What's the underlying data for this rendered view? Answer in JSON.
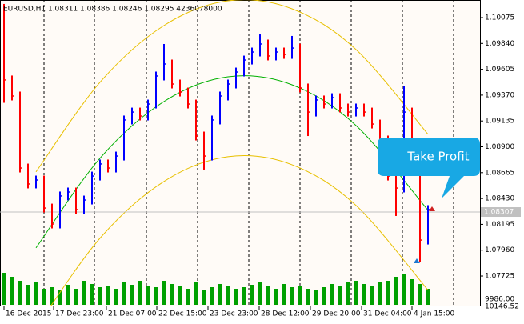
{
  "chart_data": {
    "type": "ohlc",
    "header": "EURUSD,H1  1.08311 1.08386 1.08246 1.08295  4236078000",
    "callout": "Take Profit",
    "up_color": "#0000ff",
    "down_color": "#ff0000",
    "close": [
      1.09508,
      1.09362,
      1.08707,
      1.08562,
      1.08598,
      1.08343,
      1.08198,
      1.08453,
      1.08489,
      1.08329,
      1.08416,
      1.08634,
      1.08744,
      1.08707,
      1.08816,
      1.09144,
      1.09216,
      1.0918,
      1.09289,
      1.09544,
      1.09653,
      1.09471,
      1.09398,
      1.09289,
      1.08998,
      1.08816,
      1.09144,
      1.09362,
      1.09471,
      1.0958,
      1.09689,
      1.09762,
      1.09835,
      1.09726,
      1.09762,
      1.0974,
      1.09798,
      1.09435,
      1.09216,
      1.09326,
      1.09289,
      1.09347,
      1.09253,
      1.09216,
      1.09253,
      1.09216,
      1.09107,
      1.08962,
      1.08634,
      1.08525,
      1.09216,
      1.0878,
      1.08052,
      1.08329
    ],
    "high": [
      1.10199,
      1.09548,
      1.09402,
      1.08747,
      1.08638,
      1.08638,
      1.08383,
      1.08493,
      1.08529,
      1.08529,
      1.08456,
      1.08674,
      1.08784,
      1.08784,
      1.08856,
      1.09184,
      1.09256,
      1.09256,
      1.09329,
      1.09584,
      1.09835,
      1.09693,
      1.09511,
      1.09438,
      1.09329,
      1.09038,
      1.09184,
      1.09402,
      1.09511,
      1.0962,
      1.09729,
      1.09802,
      1.09922,
      1.09875,
      1.09802,
      1.09802,
      1.09908,
      1.09838,
      1.09475,
      1.09366,
      1.09366,
      1.09387,
      1.09387,
      1.09293,
      1.09293,
      1.09293,
      1.09256,
      1.09147,
      1.09002,
      1.08674,
      1.09449,
      1.09256,
      1.0882,
      1.08369
    ],
    "low": [
      1.093,
      1.09322,
      1.08667,
      1.08522,
      1.08522,
      1.08303,
      1.08158,
      1.08158,
      1.08413,
      1.08289,
      1.08289,
      1.08376,
      1.08594,
      1.08667,
      1.08667,
      1.08776,
      1.09104,
      1.0914,
      1.0914,
      1.09249,
      1.09504,
      1.09431,
      1.09358,
      1.09249,
      1.08958,
      1.08693,
      1.08776,
      1.09104,
      1.09322,
      1.09431,
      1.0954,
      1.09649,
      1.09722,
      1.09686,
      1.09686,
      1.097,
      1.097,
      1.09395,
      1.08998,
      1.09176,
      1.09249,
      1.09249,
      1.09213,
      1.09176,
      1.09176,
      1.09176,
      1.09067,
      1.08922,
      1.08594,
      1.08271,
      1.08485,
      1.0874,
      1.07856,
      1.08012
    ],
    "volume": [
      40,
      35,
      30,
      25,
      28,
      20,
      22,
      18,
      25,
      20,
      30,
      26,
      22,
      24,
      20,
      28,
      25,
      30,
      24,
      22,
      30,
      26,
      24,
      20,
      28,
      18,
      22,
      26,
      24,
      20,
      22,
      25,
      28,
      24,
      20,
      26,
      22,
      24,
      20,
      18,
      22,
      26,
      24,
      28,
      30,
      26,
      24,
      28,
      30,
      35,
      38,
      32,
      26,
      20
    ],
    "volume_color": "#00a000",
    "volume_lim": [
      0,
      80
    ],
    "volume_labels": [
      "9986.00",
      "10146.52"
    ],
    "channel": [
      {
        "color": "#e8c000",
        "x": [
          4,
          12,
          20,
          28,
          36,
          44,
          53
        ],
        "values": [
          1.08672,
          1.09487,
          1.10003,
          1.10228,
          1.10155,
          1.09785,
          1.09014
        ]
      },
      {
        "color": "#00b000",
        "x": [
          4,
          12,
          20,
          28,
          36,
          44,
          53
        ],
        "values": [
          1.07981,
          1.08796,
          1.09312,
          1.09537,
          1.09464,
          1.09094,
          1.08323
        ]
      },
      {
        "color": "#e8c000",
        "x": [
          4,
          12,
          20,
          28,
          36,
          44,
          53
        ],
        "values": [
          1.07254,
          1.08069,
          1.08585,
          1.0881,
          1.08737,
          1.08367,
          1.07596
        ]
      }
    ],
    "markers": [
      {
        "x": 51.6,
        "value": 1.07856,
        "color": "#1e78d0"
      },
      {
        "x": 53.5,
        "value": 1.08329,
        "color": "#d02020"
      }
    ],
    "current_price": 1.08307,
    "xlim": [
      -0.5,
      59.5
    ],
    "ylim": [
      1.07456,
      1.10235
    ],
    "yticks": [
      1.10075,
      {
        "value": 1.0984,
        "label": "1.09840"
      },
      1.09605,
      {
        "value": 1.0937,
        "label": "1.09370"
      },
      1.09135,
      {
        "value": 1.089,
        "label": "1.08900"
      },
      1.08665,
      {
        "value": 1.0843,
        "label": "1.08430"
      },
      1.08195,
      {
        "value": 1.0796,
        "label": "1.07960"
      },
      1.07725
    ],
    "xticks": [
      {
        "value": 0,
        "label": "16 Dec 2015"
      },
      {
        "value": 6.2,
        "label": "17 Dec 23:00"
      },
      {
        "value": 12.8,
        "label": "21 Dec 07:00"
      },
      {
        "value": 19.1,
        "label": "22 Dec 15:00"
      },
      {
        "value": 25.5,
        "label": "23 Dec 23:00"
      },
      {
        "value": 31.9,
        "label": "28 Dec 12:00"
      },
      {
        "value": 38.3,
        "label": "29 Dec 20:00"
      },
      {
        "value": 44.7,
        "label": "31 Dec 04:00"
      },
      {
        "value": 51,
        "label": "4 Jan 15:00"
      }
    ],
    "separators": [
      5,
      11.3,
      17.8,
      24.2,
      30.6,
      37,
      43.4,
      49.8,
      56.2
    ]
  }
}
